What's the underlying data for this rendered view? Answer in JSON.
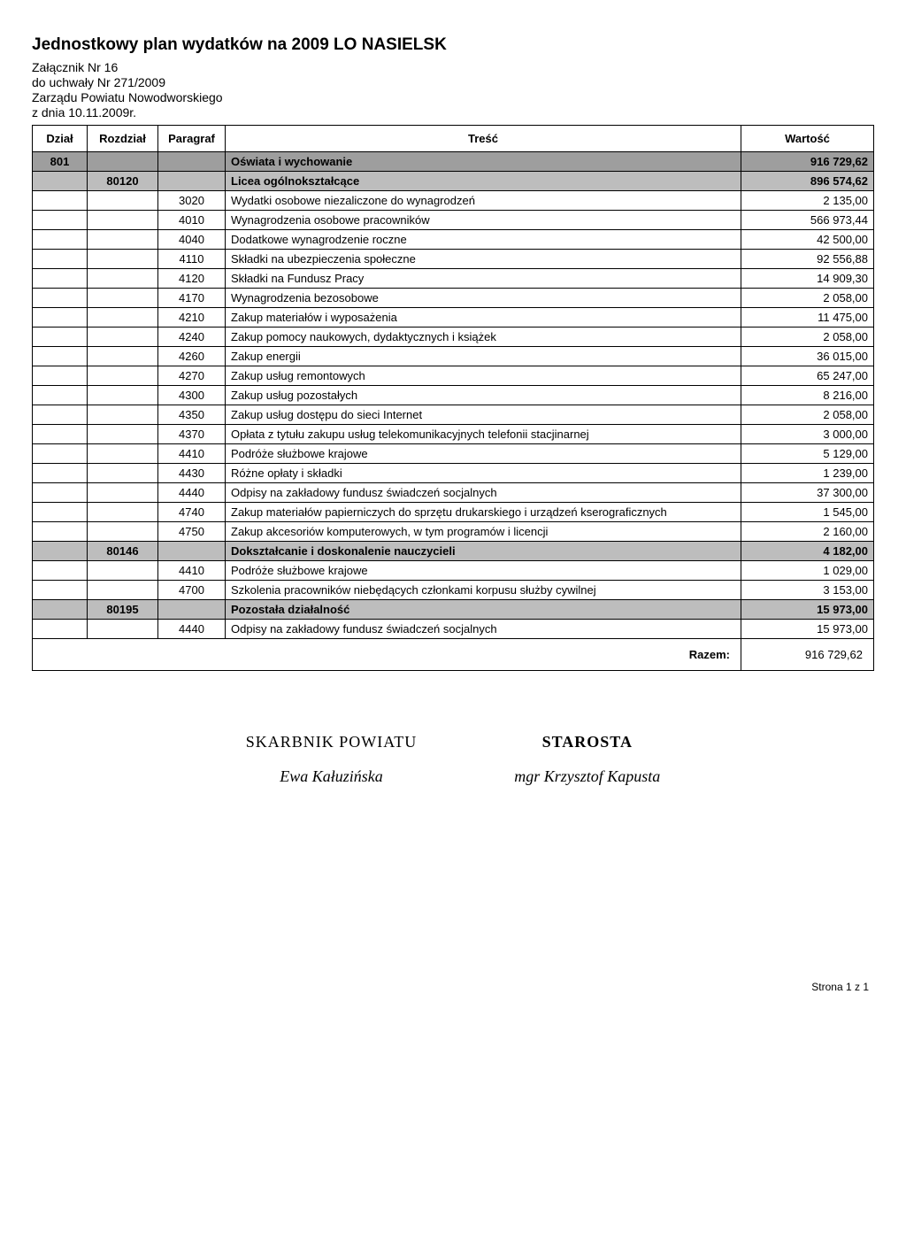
{
  "header": {
    "title": "Jednostkowy plan wydatków na 2009  LO NASIELSK",
    "line1": "Załącznik Nr  16",
    "line2": "do uchwały Nr  271/2009",
    "line3": "Zarządu Powiatu Nowodworskiego",
    "line4": "z dnia  10.11.2009r."
  },
  "columns": {
    "dzial": "Dział",
    "rozdzial": "Rozdział",
    "paragraf": "Paragraf",
    "tresc": "Treść",
    "wartosc": "Wartość"
  },
  "rows": [
    {
      "type": "section-dark",
      "dzial": "801",
      "rozdzial": "",
      "paragraf": "",
      "tresc": "Oświata i wychowanie",
      "wartosc": "916 729,62"
    },
    {
      "type": "section-mid",
      "dzial": "",
      "rozdzial": "80120",
      "paragraf": "",
      "tresc": "Licea ogólnokształcące",
      "wartosc": "896 574,62"
    },
    {
      "type": "item",
      "paragraf": "3020",
      "tresc": "Wydatki osobowe niezaliczone do wynagrodzeń",
      "wartosc": "2 135,00"
    },
    {
      "type": "item",
      "paragraf": "4010",
      "tresc": "Wynagrodzenia osobowe pracowników",
      "wartosc": "566 973,44"
    },
    {
      "type": "item",
      "paragraf": "4040",
      "tresc": "Dodatkowe wynagrodzenie roczne",
      "wartosc": "42 500,00"
    },
    {
      "type": "item",
      "paragraf": "4110",
      "tresc": "Składki na ubezpieczenia społeczne",
      "wartosc": "92 556,88"
    },
    {
      "type": "item",
      "paragraf": "4120",
      "tresc": "Składki na Fundusz Pracy",
      "wartosc": "14 909,30"
    },
    {
      "type": "item",
      "paragraf": "4170",
      "tresc": "Wynagrodzenia bezosobowe",
      "wartosc": "2 058,00"
    },
    {
      "type": "item",
      "paragraf": "4210",
      "tresc": "Zakup materiałów i wyposażenia",
      "wartosc": "11 475,00"
    },
    {
      "type": "item",
      "paragraf": "4240",
      "tresc": "Zakup pomocy naukowych, dydaktycznych i książek",
      "wartosc": "2 058,00"
    },
    {
      "type": "item",
      "paragraf": "4260",
      "tresc": "Zakup energii",
      "wartosc": "36 015,00"
    },
    {
      "type": "item",
      "paragraf": "4270",
      "tresc": "Zakup usług remontowych",
      "wartosc": "65 247,00"
    },
    {
      "type": "item",
      "paragraf": "4300",
      "tresc": "Zakup usług pozostałych",
      "wartosc": "8 216,00"
    },
    {
      "type": "item",
      "paragraf": "4350",
      "tresc": "Zakup usług dostępu do sieci Internet",
      "wartosc": "2 058,00"
    },
    {
      "type": "item",
      "paragraf": "4370",
      "tresc": "Opłata z tytułu zakupu usług telekomunikacyjnych telefonii stacjinarnej",
      "wartosc": "3 000,00"
    },
    {
      "type": "item",
      "paragraf": "4410",
      "tresc": "Podróże służbowe krajowe",
      "wartosc": "5 129,00"
    },
    {
      "type": "item",
      "paragraf": "4430",
      "tresc": "Różne opłaty i składki",
      "wartosc": "1 239,00"
    },
    {
      "type": "item",
      "paragraf": "4440",
      "tresc": "Odpisy na zakładowy fundusz świadczeń socjalnych",
      "wartosc": "37 300,00"
    },
    {
      "type": "item",
      "paragraf": "4740",
      "tresc": "Zakup materiałów papierniczych do sprzętu drukarskiego i urządzeń kserograficznych",
      "wartosc": "1 545,00"
    },
    {
      "type": "item",
      "paragraf": "4750",
      "tresc": "Zakup akcesoriów komputerowych, w tym programów i licencji",
      "wartosc": "2 160,00"
    },
    {
      "type": "section-mid",
      "dzial": "",
      "rozdzial": "80146",
      "paragraf": "",
      "tresc": "Dokształcanie i doskonalenie nauczycieli",
      "wartosc": "4 182,00"
    },
    {
      "type": "item",
      "paragraf": "4410",
      "tresc": "Podróże służbowe krajowe",
      "wartosc": "1 029,00"
    },
    {
      "type": "item",
      "paragraf": "4700",
      "tresc": "Szkolenia pracowników niebędących członkami korpusu służby cywilnej",
      "wartosc": "3 153,00"
    },
    {
      "type": "section-mid",
      "dzial": "",
      "rozdzial": "80195",
      "paragraf": "",
      "tresc": "Pozostała działalność",
      "wartosc": "15 973,00"
    },
    {
      "type": "item",
      "paragraf": "4440",
      "tresc": "Odpisy na zakładowy fundusz świadczeń socjalnych",
      "wartosc": "15 973,00"
    }
  ],
  "total": {
    "label": "Razem:",
    "value": "916 729,62"
  },
  "signatures": {
    "left": {
      "title": "SKARBNIK POWIATU",
      "name": "Ewa Kałuzińska"
    },
    "right": {
      "title": "STAROSTA",
      "name": "mgr Krzysztof  Kapusta"
    }
  },
  "footer": "Strona 1 z 1"
}
